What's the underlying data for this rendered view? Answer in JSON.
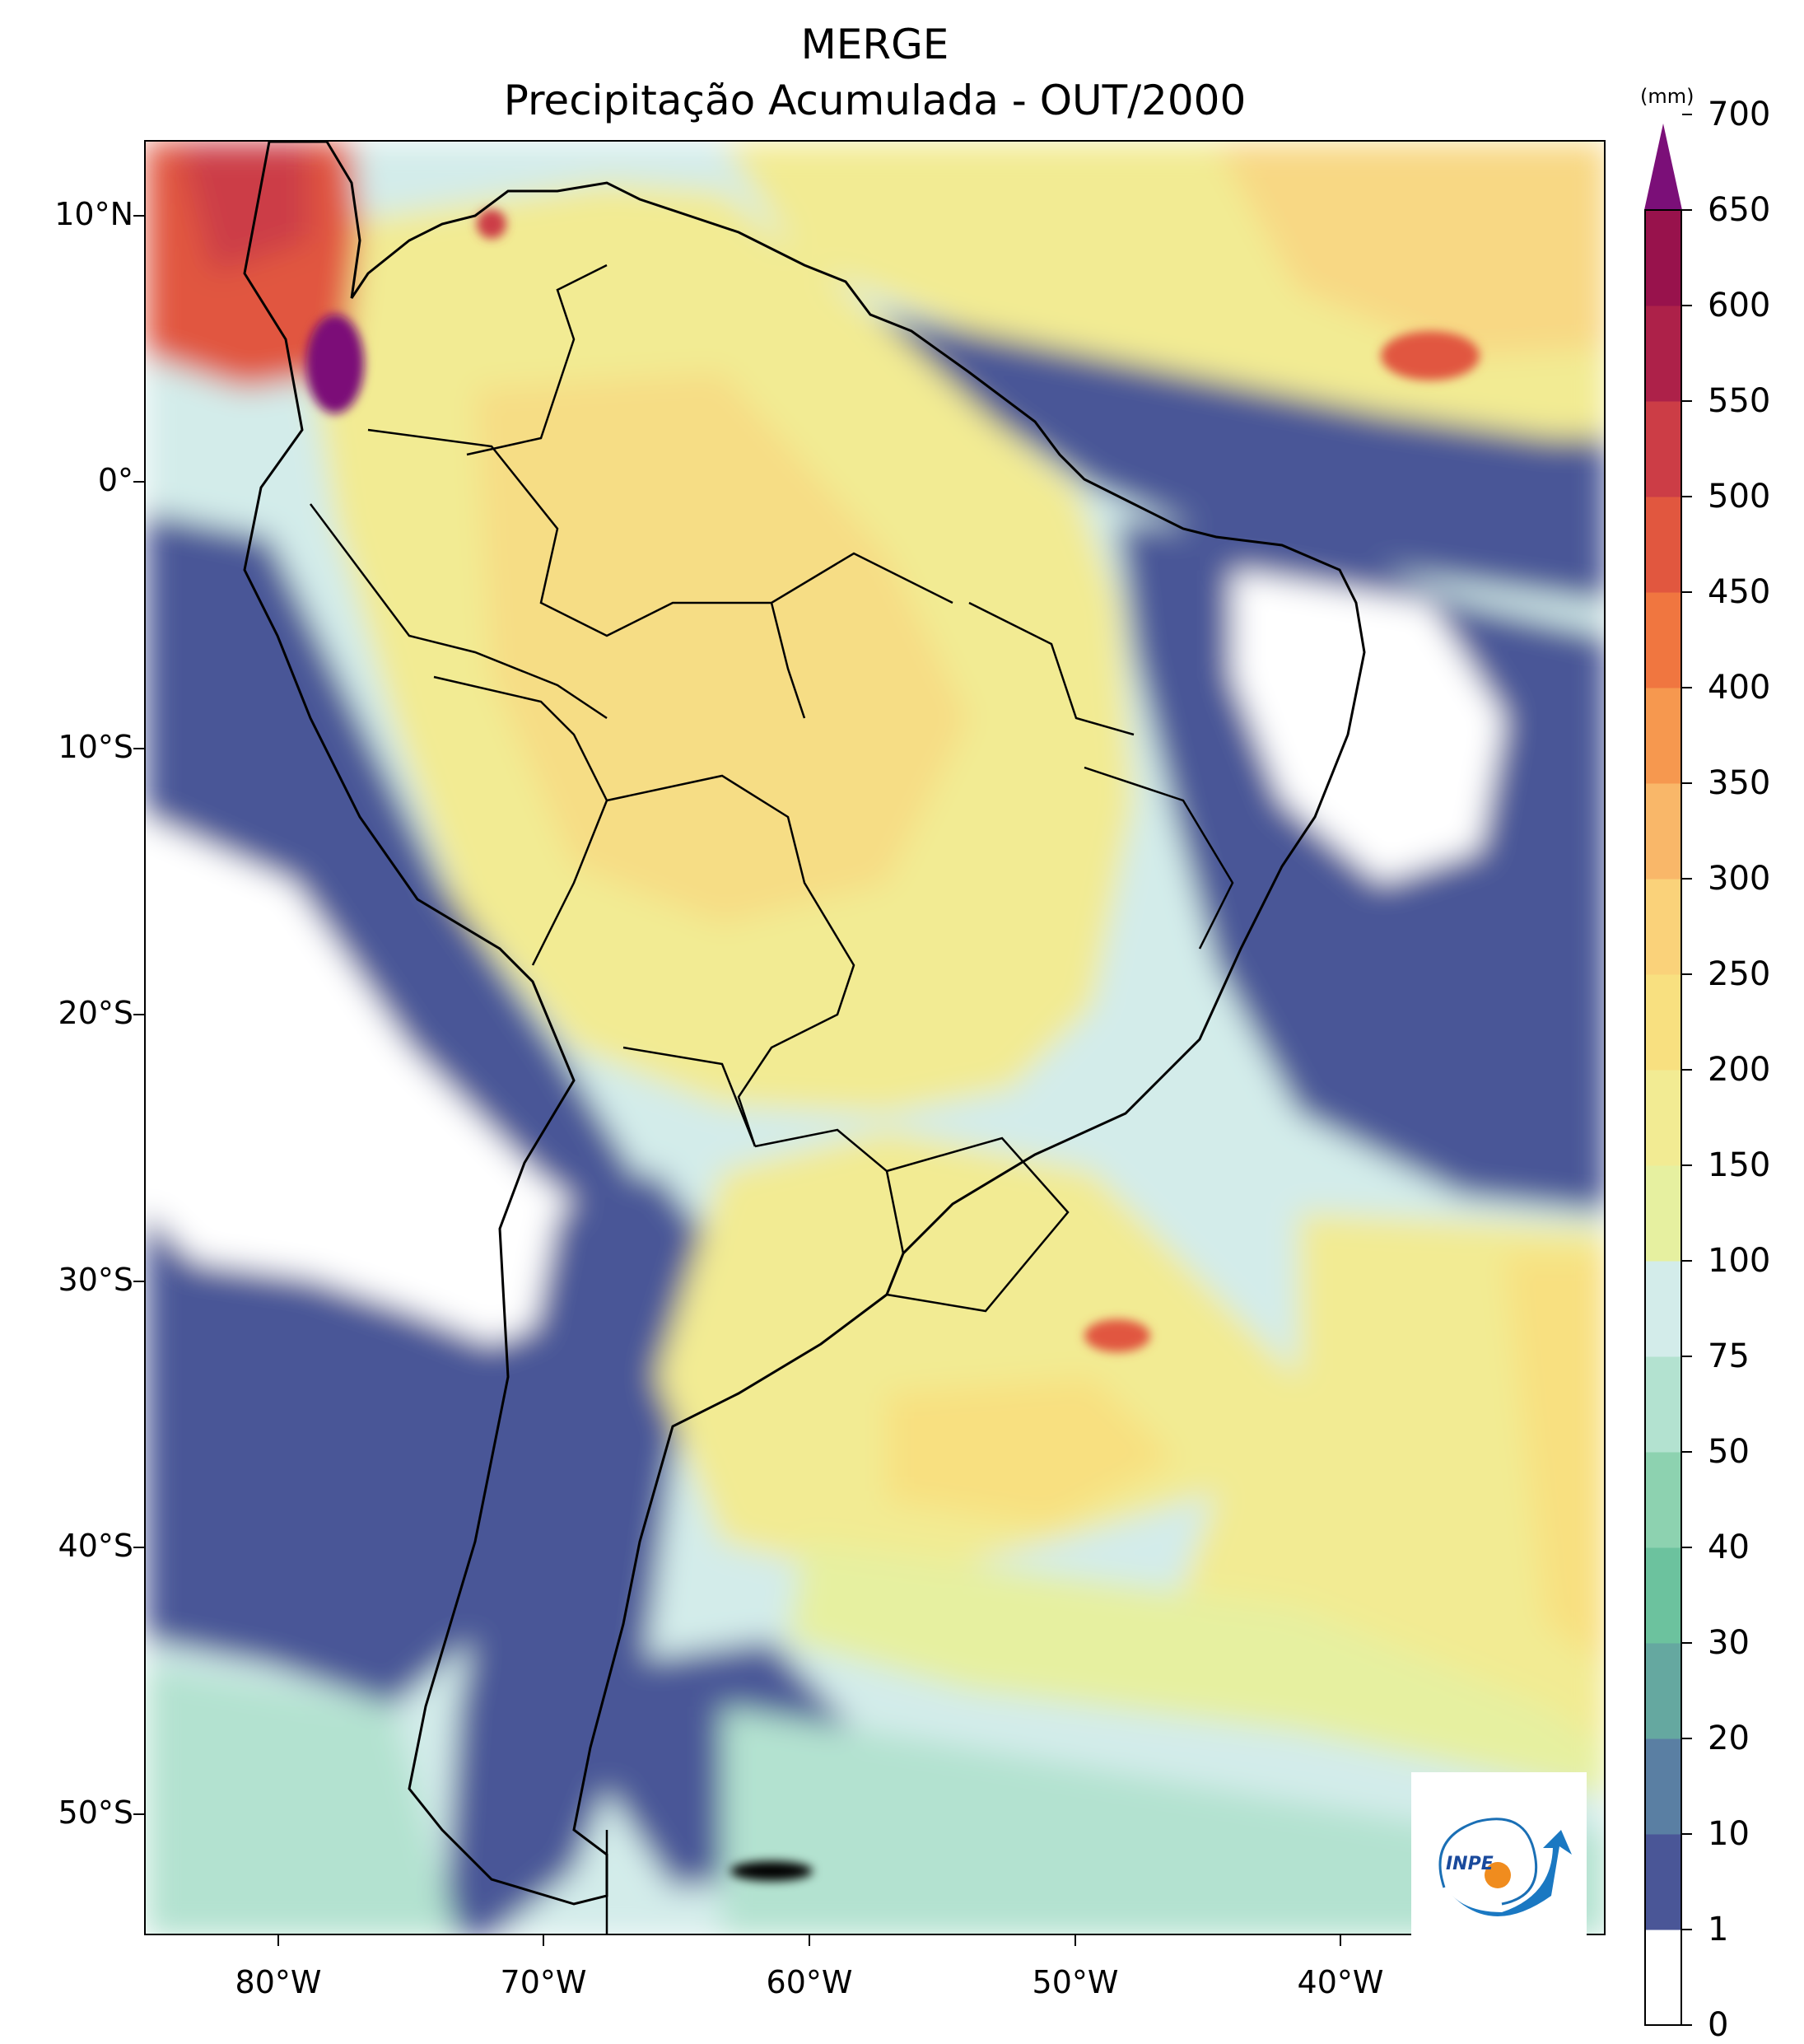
{
  "title": {
    "line1": "MERGE",
    "line2": "Precipitação Acumulada - OUT/2000"
  },
  "map": {
    "lat_labels": [
      "10°N",
      "0°",
      "10°S",
      "20°S",
      "30°S",
      "40°S",
      "50°S"
    ],
    "lat_values": [
      10,
      0,
      -10,
      -20,
      -30,
      -40,
      -50
    ],
    "lon_labels": [
      "80°W",
      "70°W",
      "60°W",
      "50°W",
      "40°W"
    ],
    "lon_values": [
      -80,
      -70,
      -60,
      -50,
      -40
    ],
    "lon_range": [
      -85,
      -30
    ],
    "lat_range": [
      -56,
      13
    ]
  },
  "colorbar": {
    "unit": "(mm)",
    "levels": [
      "0",
      "1",
      "10",
      "20",
      "30",
      "40",
      "50",
      "75",
      "100",
      "150",
      "200",
      "250",
      "300",
      "350",
      "400",
      "450",
      "500",
      "550",
      "600",
      "650",
      "700"
    ],
    "colors": [
      "#ffffff",
      "#4a5697",
      "#5a7fa3",
      "#65a8a0",
      "#6cc29e",
      "#8dd2b0",
      "#b3e2d0",
      "#d3ecea",
      "#e6f0a0",
      "#f2eb93",
      "#f8e080",
      "#fad27a",
      "#f9b769",
      "#f6984f",
      "#f07640",
      "#e1573f",
      "#cc3d46",
      "#ad2149",
      "#98124c"
    ],
    "extend_color": "#7b0f78"
  },
  "logo": {
    "text": "INPE"
  }
}
